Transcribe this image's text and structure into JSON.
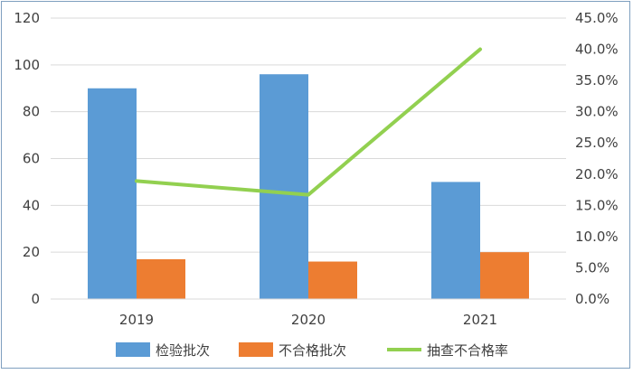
{
  "chart_data": {
    "type": "bar",
    "categories": [
      "2019",
      "2020",
      "2021"
    ],
    "series": [
      {
        "name": "检验批次",
        "type": "bar",
        "axis": "left",
        "color": "#5b9bd5",
        "values": [
          90,
          96,
          50
        ]
      },
      {
        "name": "不合格批次",
        "type": "bar",
        "axis": "left",
        "color": "#ed7d31",
        "values": [
          17,
          16,
          20
        ]
      },
      {
        "name": "抽查不合格率",
        "type": "line",
        "axis": "right",
        "color": "#92d050",
        "values": [
          0.189,
          0.167,
          0.4
        ]
      }
    ],
    "y_left": {
      "range": [
        0,
        120
      ],
      "ticks": [
        "0",
        "20",
        "40",
        "60",
        "80",
        "100",
        "120"
      ]
    },
    "y_right": {
      "range": [
        0,
        0.45
      ],
      "ticks": [
        "0.0%",
        "5.0%",
        "10.0%",
        "15.0%",
        "20.0%",
        "25.0%",
        "30.0%",
        "35.0%",
        "40.0%",
        "45.0%"
      ]
    },
    "grid": true,
    "legend_position": "bottom"
  }
}
